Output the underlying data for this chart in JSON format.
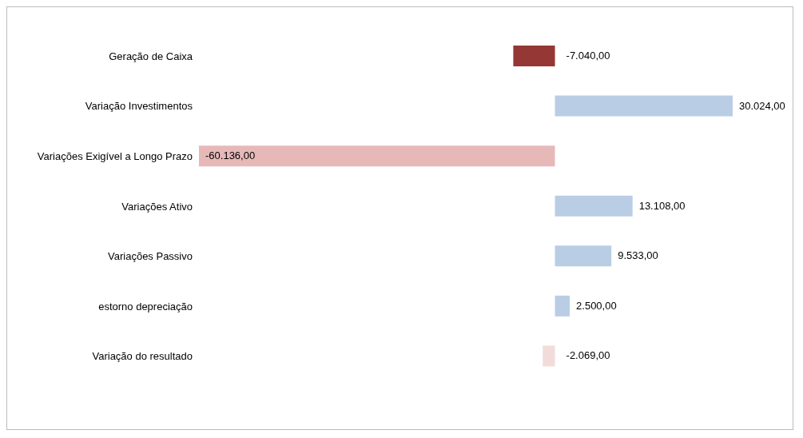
{
  "chart_data": {
    "type": "bar",
    "orientation": "horizontal",
    "categories": [
      "Geração de Caixa",
      "Variação Investimentos",
      "Variações Exigível a Longo Prazo",
      "Variações Ativo",
      "Variações Passivo",
      "estorno depreciação",
      "Variação do resultado"
    ],
    "values": [
      -7040,
      30024,
      -60136,
      13108,
      9533,
      2500,
      -2069
    ],
    "colors": [
      "#953735",
      "#b9cde5",
      "#e6b9b8",
      "#b9cde5",
      "#b9cde5",
      "#b9cde5",
      "#f2dcdb"
    ],
    "value_labels": [
      "-7.040,00",
      "30.024,00",
      "-60.136,00",
      "13.108,00",
      "9.533,00",
      "2.500,00",
      "-2.069,00"
    ],
    "grid": false,
    "legend": false
  }
}
